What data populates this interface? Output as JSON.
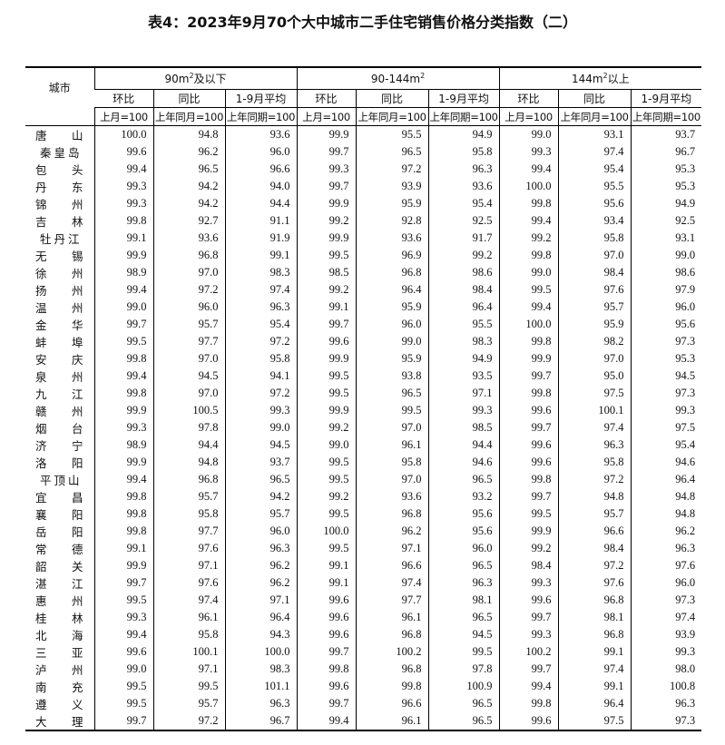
{
  "title": "表4：2023年9月70个大中城市二手住宅销售价格分类指数（二）",
  "header": {
    "city": "城市",
    "groups": [
      {
        "pre": "90m",
        "sup": "2",
        "post": "及以下"
      },
      {
        "pre": "90-144m",
        "sup": "2",
        "post": ""
      },
      {
        "pre": "144m",
        "sup": "2",
        "post": "以上"
      }
    ],
    "sub": [
      "环比",
      "同比",
      "1-9月平均"
    ],
    "base": [
      "上月=100",
      "上年同月=100",
      "上年同期=100"
    ]
  },
  "rows": [
    {
      "city": "唐山",
      "v": [
        "100.0",
        "94.8",
        "93.6",
        "99.9",
        "95.5",
        "94.9",
        "99.0",
        "93.1",
        "93.7"
      ]
    },
    {
      "city": "秦皇岛",
      "v": [
        "99.6",
        "96.2",
        "96.0",
        "99.7",
        "96.5",
        "95.8",
        "99.3",
        "97.4",
        "96.7"
      ]
    },
    {
      "city": "包头",
      "v": [
        "99.4",
        "96.5",
        "96.6",
        "99.3",
        "97.2",
        "96.3",
        "99.4",
        "95.4",
        "95.3"
      ]
    },
    {
      "city": "丹东",
      "v": [
        "99.3",
        "94.2",
        "94.0",
        "99.7",
        "93.9",
        "93.6",
        "100.0",
        "95.5",
        "95.3"
      ]
    },
    {
      "city": "锦州",
      "v": [
        "99.3",
        "94.2",
        "94.4",
        "99.9",
        "95.9",
        "95.4",
        "99.8",
        "95.6",
        "94.9"
      ]
    },
    {
      "city": "吉林",
      "v": [
        "99.8",
        "92.7",
        "91.1",
        "99.2",
        "92.8",
        "92.5",
        "99.4",
        "93.4",
        "92.5"
      ]
    },
    {
      "city": "牡丹江",
      "v": [
        "99.1",
        "93.6",
        "91.9",
        "99.9",
        "93.6",
        "91.7",
        "99.2",
        "95.8",
        "93.1"
      ]
    },
    {
      "city": "无锡",
      "v": [
        "99.9",
        "96.8",
        "99.1",
        "99.5",
        "96.9",
        "99.2",
        "99.8",
        "97.0",
        "99.0"
      ]
    },
    {
      "city": "徐州",
      "v": [
        "98.9",
        "97.0",
        "98.3",
        "98.5",
        "96.8",
        "98.6",
        "99.0",
        "98.4",
        "98.6"
      ]
    },
    {
      "city": "扬州",
      "v": [
        "99.4",
        "97.2",
        "97.4",
        "99.2",
        "96.4",
        "98.4",
        "99.5",
        "97.6",
        "97.9"
      ]
    },
    {
      "city": "温州",
      "v": [
        "99.0",
        "96.0",
        "96.3",
        "99.1",
        "95.9",
        "96.4",
        "99.4",
        "95.7",
        "96.0"
      ]
    },
    {
      "city": "金华",
      "v": [
        "99.7",
        "95.7",
        "95.4",
        "99.7",
        "96.0",
        "95.5",
        "100.0",
        "95.9",
        "95.6"
      ]
    },
    {
      "city": "蚌埠",
      "v": [
        "99.5",
        "97.7",
        "97.2",
        "99.6",
        "99.0",
        "98.3",
        "99.8",
        "98.2",
        "97.3"
      ]
    },
    {
      "city": "安庆",
      "v": [
        "99.8",
        "97.0",
        "95.8",
        "99.9",
        "95.9",
        "94.9",
        "99.9",
        "97.0",
        "95.3"
      ]
    },
    {
      "city": "泉州",
      "v": [
        "99.4",
        "94.5",
        "94.1",
        "99.5",
        "93.8",
        "93.5",
        "99.7",
        "95.0",
        "94.5"
      ]
    },
    {
      "city": "九江",
      "v": [
        "99.8",
        "97.0",
        "97.2",
        "99.5",
        "96.5",
        "97.1",
        "99.8",
        "97.5",
        "97.3"
      ]
    },
    {
      "city": "赣州",
      "v": [
        "99.9",
        "100.5",
        "99.3",
        "99.9",
        "99.5",
        "99.3",
        "99.6",
        "100.1",
        "99.3"
      ]
    },
    {
      "city": "烟台",
      "v": [
        "99.3",
        "97.8",
        "99.0",
        "99.2",
        "97.0",
        "98.5",
        "99.7",
        "97.4",
        "97.5"
      ]
    },
    {
      "city": "济宁",
      "v": [
        "98.9",
        "94.4",
        "94.5",
        "99.0",
        "96.1",
        "94.4",
        "99.6",
        "96.3",
        "95.4"
      ]
    },
    {
      "city": "洛阳",
      "v": [
        "99.9",
        "94.8",
        "93.7",
        "99.5",
        "95.8",
        "94.6",
        "99.6",
        "95.8",
        "94.6"
      ]
    },
    {
      "city": "平顶山",
      "v": [
        "99.4",
        "96.8",
        "96.5",
        "99.5",
        "97.0",
        "96.5",
        "99.8",
        "97.2",
        "96.4"
      ]
    },
    {
      "city": "宜昌",
      "v": [
        "99.8",
        "95.7",
        "94.2",
        "99.2",
        "93.6",
        "93.2",
        "99.7",
        "94.8",
        "94.8"
      ]
    },
    {
      "city": "襄阳",
      "v": [
        "99.8",
        "95.8",
        "95.7",
        "99.5",
        "96.8",
        "95.6",
        "99.5",
        "95.7",
        "94.8"
      ]
    },
    {
      "city": "岳阳",
      "v": [
        "99.8",
        "97.7",
        "96.0",
        "100.0",
        "96.2",
        "95.6",
        "99.9",
        "96.6",
        "96.2"
      ]
    },
    {
      "city": "常德",
      "v": [
        "99.1",
        "97.6",
        "96.3",
        "99.5",
        "97.1",
        "96.0",
        "99.2",
        "98.4",
        "96.3"
      ]
    },
    {
      "city": "韶关",
      "v": [
        "99.9",
        "97.1",
        "96.2",
        "99.1",
        "96.6",
        "96.5",
        "98.4",
        "97.2",
        "97.6"
      ]
    },
    {
      "city": "湛江",
      "v": [
        "99.7",
        "97.6",
        "96.2",
        "99.1",
        "97.4",
        "96.3",
        "99.3",
        "97.6",
        "96.0"
      ]
    },
    {
      "city": "惠州",
      "v": [
        "99.5",
        "97.4",
        "97.1",
        "99.6",
        "97.7",
        "98.1",
        "99.6",
        "96.8",
        "97.3"
      ]
    },
    {
      "city": "桂林",
      "v": [
        "99.3",
        "96.1",
        "96.4",
        "99.6",
        "96.1",
        "96.5",
        "99.7",
        "98.1",
        "97.4"
      ]
    },
    {
      "city": "北海",
      "v": [
        "99.4",
        "95.8",
        "94.3",
        "99.6",
        "96.8",
        "94.5",
        "99.3",
        "96.8",
        "93.9"
      ]
    },
    {
      "city": "三亚",
      "v": [
        "99.6",
        "100.1",
        "100.0",
        "99.7",
        "100.2",
        "99.5",
        "100.2",
        "99.1",
        "99.3"
      ]
    },
    {
      "city": "泸州",
      "v": [
        "99.0",
        "97.1",
        "98.3",
        "99.8",
        "96.8",
        "97.8",
        "99.7",
        "97.4",
        "98.0"
      ]
    },
    {
      "city": "南充",
      "v": [
        "99.5",
        "99.5",
        "101.1",
        "99.6",
        "99.8",
        "100.9",
        "99.4",
        "99.1",
        "100.8"
      ]
    },
    {
      "city": "遵义",
      "v": [
        "99.5",
        "95.7",
        "96.3",
        "99.7",
        "96.6",
        "96.5",
        "99.8",
        "96.4",
        "96.3"
      ]
    },
    {
      "city": "大理",
      "v": [
        "99.7",
        "97.2",
        "96.7",
        "99.4",
        "96.1",
        "96.5",
        "99.6",
        "97.5",
        "97.3"
      ]
    }
  ]
}
